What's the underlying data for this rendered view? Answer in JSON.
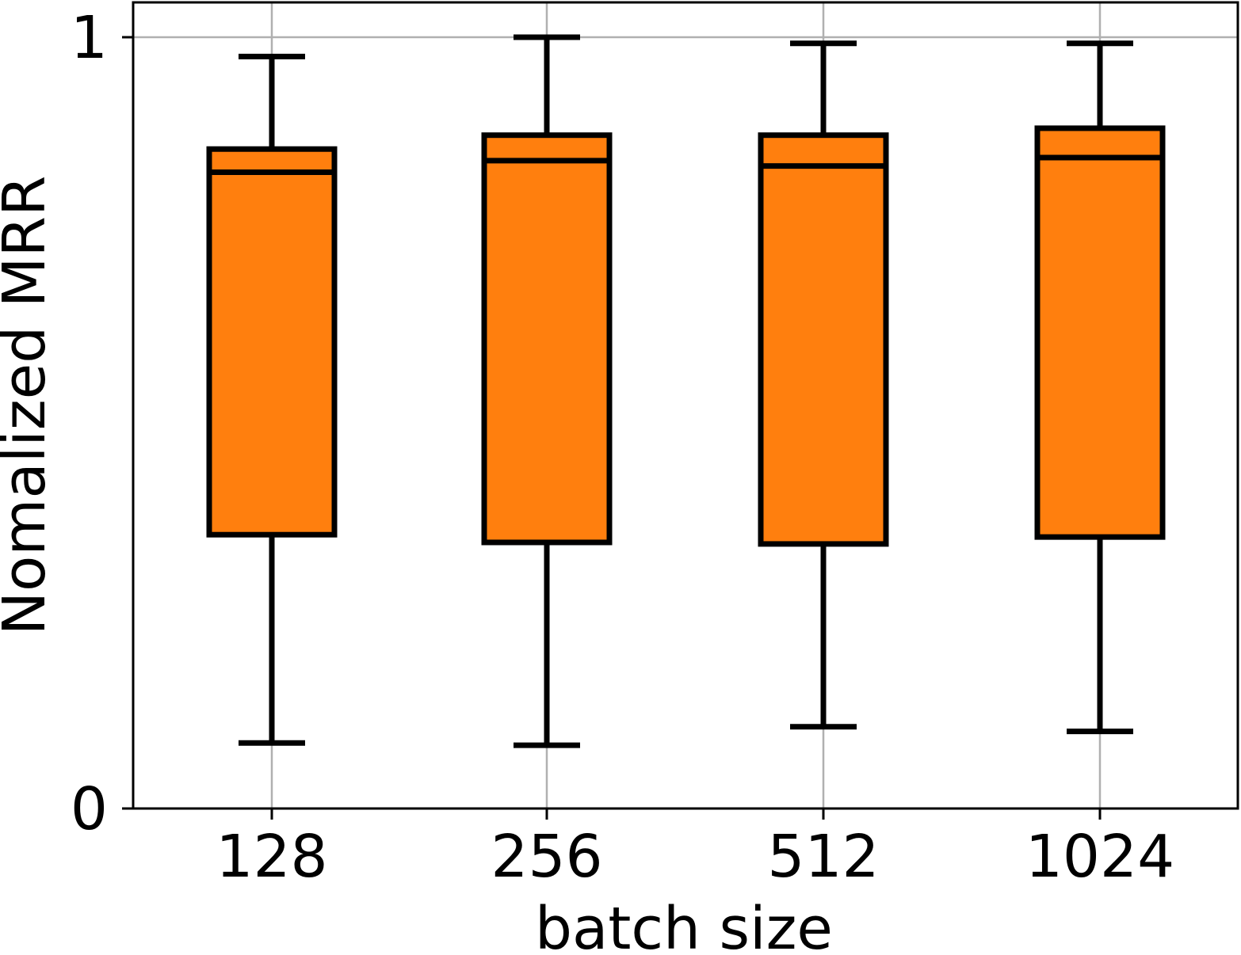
{
  "chart_data": {
    "type": "box",
    "categories": [
      "128",
      "256",
      "512",
      "1024"
    ],
    "boxes": [
      {
        "category": "128",
        "whisker_low": 0.085,
        "q1": 0.355,
        "median": 0.825,
        "q3": 0.855,
        "whisker_high": 0.975
      },
      {
        "category": "256",
        "whisker_low": 0.082,
        "q1": 0.345,
        "median": 0.84,
        "q3": 0.873,
        "whisker_high": 1.0
      },
      {
        "category": "512",
        "whisker_low": 0.106,
        "q1": 0.343,
        "median": 0.833,
        "q3": 0.873,
        "whisker_high": 0.992
      },
      {
        "category": "1024",
        "whisker_low": 0.1,
        "q1": 0.352,
        "median": 0.844,
        "q3": 0.882,
        "whisker_high": 0.992
      }
    ],
    "xlabel": "batch size",
    "ylabel": "Nomalized MRR",
    "ylim": [
      0,
      1.045
    ],
    "yticks": [
      "0",
      "1"
    ],
    "grid": true,
    "box_color": "#ff7f0e",
    "line_color": "#000000",
    "grid_color": "#b0b0b0"
  }
}
